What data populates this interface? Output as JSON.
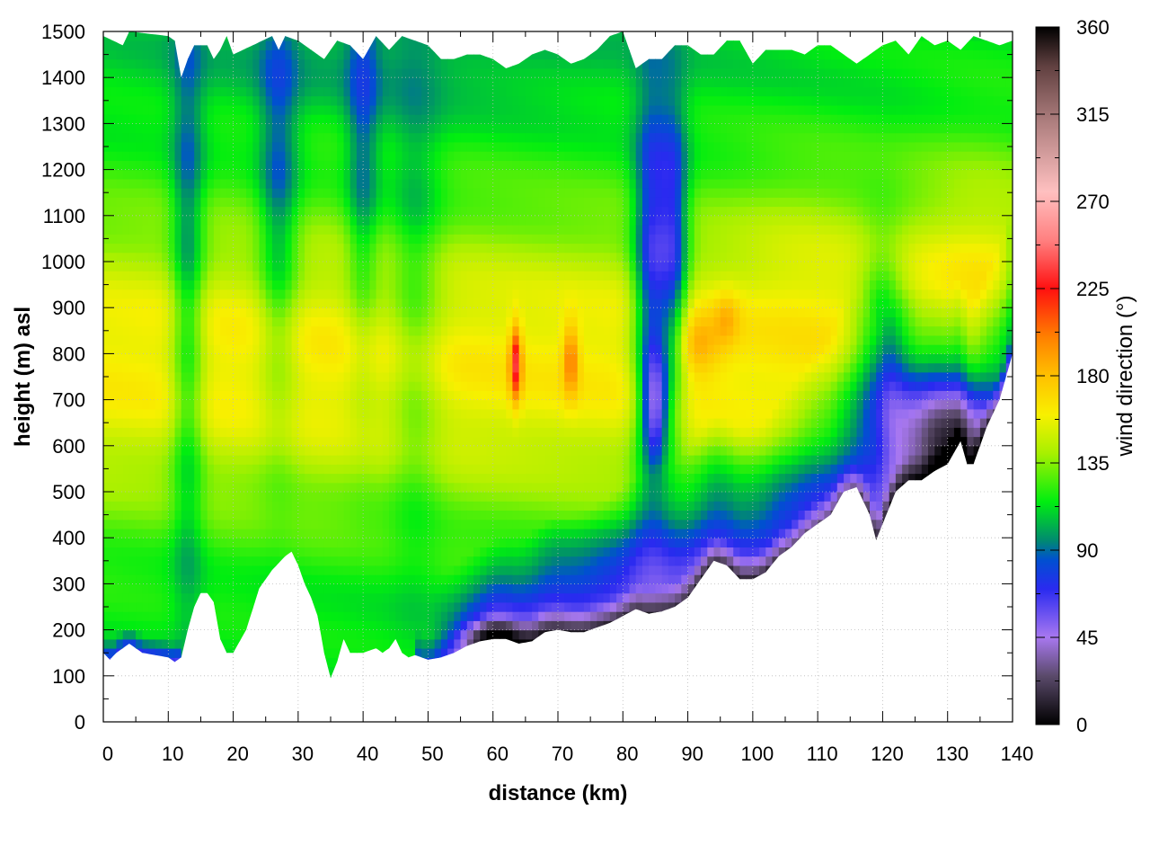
{
  "chart_data": {
    "type": "heatmap",
    "title": "",
    "xlabel": "distance (km)",
    "ylabel": "height (m) asl",
    "colorbar_label": "wind direction (°)",
    "xlim": [
      0,
      140
    ],
    "ylim": [
      0,
      1500
    ],
    "clim": [
      0,
      360
    ],
    "xticks": [
      0,
      10,
      20,
      30,
      40,
      50,
      60,
      70,
      80,
      90,
      100,
      110,
      120,
      130,
      140
    ],
    "yticks": [
      0,
      100,
      200,
      300,
      400,
      500,
      600,
      700,
      800,
      900,
      1000,
      1100,
      1200,
      1300,
      1400,
      1500
    ],
    "cticks": [
      0,
      45,
      90,
      135,
      180,
      225,
      270,
      315,
      360
    ],
    "grid": true,
    "colormap_stops": [
      [
        0,
        "#000000"
      ],
      [
        25,
        "#5a4a6a"
      ],
      [
        45,
        "#a878f0"
      ],
      [
        70,
        "#2a2af0"
      ],
      [
        85,
        "#0050d0"
      ],
      [
        95,
        "#008a70"
      ],
      [
        115,
        "#00ee10"
      ],
      [
        140,
        "#a8f000"
      ],
      [
        160,
        "#f8f000"
      ],
      [
        180,
        "#ffc000"
      ],
      [
        200,
        "#ff8000"
      ],
      [
        225,
        "#ff1010"
      ],
      [
        250,
        "#ff8080"
      ],
      [
        275,
        "#ffc0c0"
      ],
      [
        310,
        "#b08080"
      ],
      [
        340,
        "#604040"
      ],
      [
        360,
        "#000000"
      ]
    ],
    "terrain_height_m": {
      "x_km": [
        0,
        1,
        2,
        4,
        6,
        8,
        10,
        11,
        12,
        13,
        14,
        15,
        16,
        17,
        18,
        19,
        20,
        22,
        24,
        26,
        28,
        29,
        30,
        31,
        32,
        33,
        34,
        35,
        36,
        37,
        38,
        40,
        42,
        43,
        44,
        45,
        46,
        47,
        48,
        50,
        52,
        54,
        56,
        58,
        60,
        62,
        64,
        66,
        68,
        70,
        72,
        74,
        76,
        78,
        80,
        82,
        84,
        86,
        88,
        90,
        92,
        94,
        96,
        98,
        100,
        102,
        104,
        106,
        108,
        110,
        112,
        114,
        116,
        118,
        119,
        120,
        122,
        124,
        126,
        128,
        130,
        132,
        133,
        134,
        135,
        136,
        138,
        140
      ],
      "z_m": [
        150,
        135,
        150,
        170,
        150,
        145,
        140,
        130,
        140,
        200,
        250,
        280,
        280,
        260,
        180,
        150,
        150,
        200,
        290,
        330,
        360,
        370,
        340,
        300,
        270,
        230,
        150,
        95,
        130,
        180,
        150,
        150,
        160,
        150,
        160,
        180,
        150,
        140,
        145,
        135,
        140,
        150,
        165,
        175,
        180,
        180,
        170,
        175,
        195,
        200,
        195,
        195,
        205,
        215,
        230,
        245,
        235,
        240,
        250,
        270,
        310,
        350,
        340,
        310,
        310,
        325,
        360,
        380,
        410,
        430,
        450,
        500,
        510,
        450,
        395,
        430,
        500,
        525,
        525,
        545,
        560,
        610,
        560,
        560,
        600,
        640,
        700,
        800
      ]
    },
    "data_top_m": {
      "x_km": [
        0,
        3,
        4,
        10,
        11,
        12,
        13,
        14,
        15,
        16,
        17,
        18,
        19,
        20,
        26,
        27,
        28,
        30,
        32,
        34,
        36,
        38,
        40,
        42,
        44,
        46,
        48,
        50,
        52,
        54,
        56,
        58,
        60,
        62,
        64,
        66,
        68,
        70,
        72,
        74,
        76,
        78,
        80,
        82,
        84,
        86,
        88,
        90,
        92,
        94,
        96,
        98,
        100,
        102,
        104,
        106,
        108,
        110,
        112,
        114,
        116,
        118,
        120,
        122,
        124,
        126,
        128,
        130,
        132,
        134,
        136,
        138,
        140
      ],
      "z_m": [
        1490,
        1470,
        1500,
        1490,
        1480,
        1400,
        1440,
        1470,
        1470,
        1470,
        1440,
        1460,
        1490,
        1450,
        1490,
        1460,
        1490,
        1480,
        1460,
        1440,
        1480,
        1470,
        1440,
        1490,
        1460,
        1490,
        1480,
        1470,
        1440,
        1440,
        1450,
        1450,
        1440,
        1420,
        1430,
        1450,
        1460,
        1450,
        1430,
        1440,
        1460,
        1490,
        1500,
        1420,
        1440,
        1440,
        1470,
        1470,
        1450,
        1450,
        1480,
        1480,
        1430,
        1460,
        1460,
        1460,
        1450,
        1470,
        1470,
        1450,
        1430,
        1450,
        1470,
        1480,
        1450,
        1490,
        1470,
        1480,
        1460,
        1490,
        1480,
        1470,
        1480
      ]
    },
    "field_notes": "Wind direction field between terrain and top of data: ~95-140 deg (green) aloft, ~150-175 deg (yellow) near 600-1100 m, ~60-80 deg (blue) near ground east of 50 km, purple (~40-50 deg) patches at the lowest levels, orange/red (~190-230 deg) spots near 63-65 km and 71-73 km at 700-880 m, a tongue of ~60-80 deg rising to ~1200 m near 82-88 km."
  }
}
